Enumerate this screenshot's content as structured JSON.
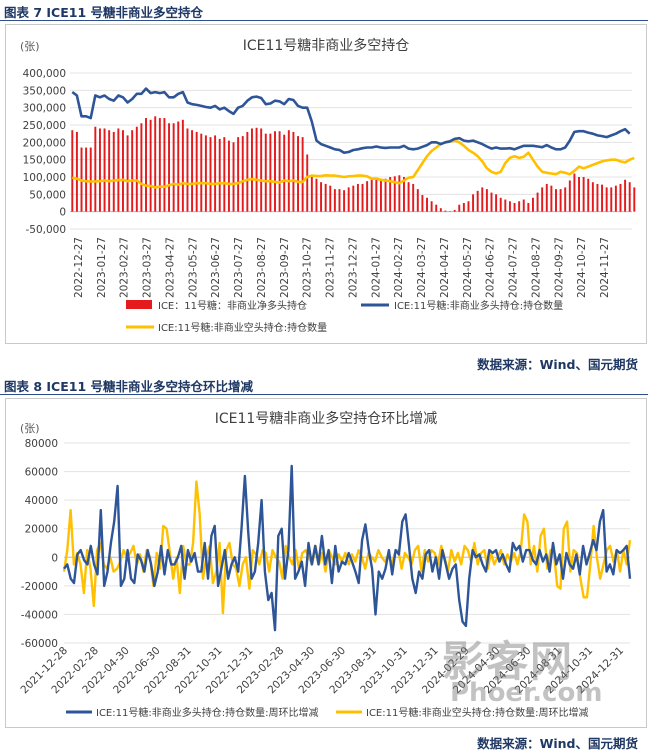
{
  "figure7": {
    "caption": "图表 7  ICE11 号糖非商业多空持仓",
    "source": "数据来源：Wind、国元期货",
    "chart_data": {
      "type": "bar+line",
      "title": "ICE11号糖非商业多空持仓",
      "unit_label": "(张)",
      "ylim": [
        -50000,
        400000
      ],
      "yticks": [
        "400,000",
        "350,000",
        "300,000",
        "250,000",
        "200,000",
        "150,000",
        "100,000",
        "50,000",
        "0",
        "-50,000"
      ],
      "x_tick_labels": [
        "2022-12-27",
        "2023-01-27",
        "2023-02-27",
        "2023-03-27",
        "2023-04-27",
        "2023-05-27",
        "2023-06-27",
        "2023-07-27",
        "2023-08-27",
        "2023-09-27",
        "2023-10-27",
        "2023-11-27",
        "2023-12-27",
        "2024-01-27",
        "2024-02-27",
        "2024-03-27",
        "2024-04-27",
        "2024-05-27",
        "2024-06-27",
        "2024-07-27",
        "2024-08-27",
        "2024-09-27",
        "2024-10-27",
        "2024-11-27"
      ],
      "legend": [
        "ICE：11号糖：非商业净多头持仓",
        "ICE:11号糖:非商业多头持仓:持仓数量",
        "ICE:11号糖:非商业空头持仓:持仓数量"
      ],
      "colors": {
        "net": "#e41a1c",
        "long": "#2e5597",
        "short": "#ffc000"
      },
      "long_positions": [
        345000,
        335000,
        275000,
        275000,
        270000,
        335000,
        330000,
        335000,
        325000,
        320000,
        335000,
        330000,
        315000,
        325000,
        340000,
        340000,
        355000,
        342000,
        345000,
        342000,
        345000,
        330000,
        330000,
        340000,
        345000,
        315000,
        310000,
        308000,
        305000,
        302000,
        300000,
        305000,
        295000,
        300000,
        290000,
        282000,
        300000,
        305000,
        320000,
        330000,
        332000,
        328000,
        310000,
        312000,
        320000,
        318000,
        310000,
        325000,
        322000,
        305000,
        300000,
        300000,
        260000,
        205000,
        195000,
        190000,
        185000,
        180000,
        178000,
        170000,
        172000,
        178000,
        180000,
        183000,
        185000,
        185000,
        188000,
        185000,
        184000,
        185000,
        185000,
        185000,
        190000,
        182000,
        180000,
        182000,
        187000,
        192000,
        200000,
        200000,
        195000,
        200000,
        203000,
        210000,
        212000,
        205000,
        203000,
        205000,
        200000,
        195000,
        188000,
        182000,
        185000,
        182000,
        182000,
        183000,
        180000,
        185000,
        190000,
        190000,
        190000,
        188000,
        186000,
        192000,
        185000,
        180000,
        180000,
        185000,
        205000,
        230000,
        232000,
        232000,
        228000,
        225000,
        220000,
        218000,
        215000,
        220000,
        225000,
        232000,
        238000,
        225000
      ],
      "short_positions": [
        98000,
        95000,
        90000,
        88000,
        87000,
        87000,
        88000,
        90000,
        88000,
        90000,
        91000,
        92000,
        88000,
        90000,
        90000,
        80000,
        75000,
        74000,
        70000,
        72000,
        72000,
        76000,
        80000,
        78000,
        82000,
        80000,
        80000,
        82000,
        82000,
        82000,
        80000,
        80000,
        82000,
        82000,
        80000,
        80000,
        82000,
        88000,
        92000,
        94000,
        92000,
        90000,
        88000,
        88000,
        86000,
        84000,
        90000,
        88000,
        90000,
        86000,
        86000,
        100000,
        104000,
        103000,
        103000,
        105000,
        104000,
        104000,
        102000,
        100000,
        102000,
        103000,
        104000,
        104000,
        102000,
        95000,
        95000,
        92000,
        90000,
        88000,
        85000,
        82000,
        90000,
        98000,
        100000,
        120000,
        140000,
        160000,
        175000,
        185000,
        195000,
        200000,
        202000,
        205000,
        200000,
        190000,
        178000,
        170000,
        160000,
        145000,
        125000,
        115000,
        110000,
        115000,
        140000,
        155000,
        160000,
        155000,
        158000,
        170000,
        150000,
        130000,
        115000,
        112000,
        110000,
        108000,
        115000,
        112000,
        108000,
        118000,
        130000,
        125000,
        130000,
        135000,
        140000,
        145000,
        148000,
        150000,
        150000,
        145000,
        142000,
        150000,
        155000
      ],
      "net_positions": [
        235000,
        230000,
        185000,
        185000,
        185000,
        245000,
        240000,
        240000,
        235000,
        230000,
        240000,
        235000,
        220000,
        235000,
        245000,
        255000,
        270000,
        265000,
        275000,
        270000,
        270000,
        255000,
        255000,
        260000,
        265000,
        240000,
        235000,
        230000,
        225000,
        220000,
        215000,
        220000,
        210000,
        215000,
        205000,
        200000,
        215000,
        218000,
        230000,
        240000,
        242000,
        240000,
        225000,
        225000,
        232000,
        232000,
        222000,
        235000,
        230000,
        218000,
        215000,
        165000,
        100000,
        95000,
        85000,
        80000,
        75000,
        65000,
        65000,
        62000,
        70000,
        75000,
        80000,
        80000,
        88000,
        95000,
        95000,
        95000,
        95000,
        100000,
        102000,
        105000,
        100000,
        85000,
        80000,
        65000,
        48000,
        40000,
        30000,
        20000,
        10000,
        3000,
        1000,
        5000,
        20000,
        25000,
        30000,
        50000,
        60000,
        70000,
        65000,
        55000,
        50000,
        40000,
        35000,
        30000,
        25000,
        30000,
        35000,
        25000,
        40000,
        55000,
        70000,
        80000,
        75000,
        65000,
        65000,
        70000,
        90000,
        110000,
        100000,
        100000,
        95000,
        85000,
        80000,
        78000,
        70000,
        70000,
        75000,
        80000,
        92000,
        85000,
        70000
      ]
    }
  },
  "figure8": {
    "caption": "图表 8  ICE11 号糖非商业多空持仓环比增减",
    "source": "数据来源：Wind、国元期货",
    "chart_data": {
      "type": "line",
      "title": "ICE11号糖非商业多空持仓环比增减",
      "unit_label": "(张)",
      "ylim": [
        -60000,
        80000
      ],
      "yticks": [
        "80000",
        "60000",
        "40000",
        "20000",
        "0",
        "-20000",
        "-40000",
        "-60000"
      ],
      "x_tick_labels": [
        "2021-12-28",
        "2022-02-28",
        "2022-04-30",
        "2022-06-30",
        "2022-08-31",
        "2022-10-31",
        "2022-12-31",
        "2023-02-28",
        "2023-04-30",
        "2023-06-30",
        "2023-08-31",
        "2023-10-31",
        "2023-12-31",
        "2024-02-29",
        "2024-04-30",
        "2024-06-30",
        "2024-08-31",
        "2024-10-31",
        "2024-12-31"
      ],
      "legend": [
        "ICE:11号糖:非商业多头持仓:持仓数量:周环比增减",
        "ICE:11号糖:非商业空头持仓:持仓数量:周环比增减"
      ],
      "colors": {
        "long": "#2e5597",
        "short": "#ffc000"
      },
      "long_change": [
        -8000,
        -5000,
        -15000,
        -18000,
        2000,
        5000,
        -2000,
        -5000,
        8000,
        -5000,
        -12000,
        33000,
        -20000,
        -10000,
        10000,
        25000,
        50000,
        -20000,
        -15000,
        5000,
        -15000,
        -18000,
        2000,
        -2000,
        -10000,
        5000,
        -5000,
        -20000,
        -10000,
        8000,
        -12000,
        5000,
        -5000,
        -5000,
        0,
        8000,
        -15000,
        5000,
        -3000,
        3000,
        -10000,
        -10000,
        10000,
        -15000,
        15000,
        22000,
        -20000,
        -8000,
        5000,
        -15000,
        -5000,
        0,
        -10000,
        20000,
        57000,
        18000,
        -15000,
        -10000,
        10000,
        40000,
        -10000,
        -30000,
        -25000,
        -51000,
        15000,
        20000,
        -15000,
        5000,
        64000,
        -15000,
        -10000,
        -3000,
        -20000,
        10000,
        -5000,
        8000,
        -5000,
        15000,
        -5000,
        5000,
        -18000,
        8000,
        -10000,
        -3000,
        -5000,
        3000,
        -3000,
        -10000,
        -18000,
        12000,
        23000,
        5000,
        -8000,
        -40000,
        -10000,
        -15000,
        -8000,
        5000,
        -12000,
        5000,
        2000,
        25000,
        30000,
        8000,
        -15000,
        -25000,
        -10000,
        -15000,
        2000,
        5000,
        -10000,
        0,
        -15000,
        5000,
        -5000,
        -15000,
        -8000,
        -5000,
        -30000,
        -45000,
        -48000,
        -15000,
        5000,
        0,
        2000,
        -5000,
        -10000,
        5000,
        3000,
        5000,
        -3000,
        2000,
        -5000,
        -10000,
        10000,
        5000,
        8000,
        -3000,
        5000,
        5000,
        -2000,
        -5000,
        5000,
        -3000,
        2000,
        -10000,
        10000,
        -5000,
        2000,
        -15000,
        3000,
        -5000,
        -8000,
        2000,
        -12000,
        8000,
        -5000,
        3000,
        12000,
        5000,
        25000,
        33000,
        -10000,
        -5000,
        -12000,
        5000,
        3000,
        5000,
        8000,
        -15000
      ]
    }
  },
  "watermark": {
    "line1": "影客网",
    "line2": "Phoer.com"
  }
}
